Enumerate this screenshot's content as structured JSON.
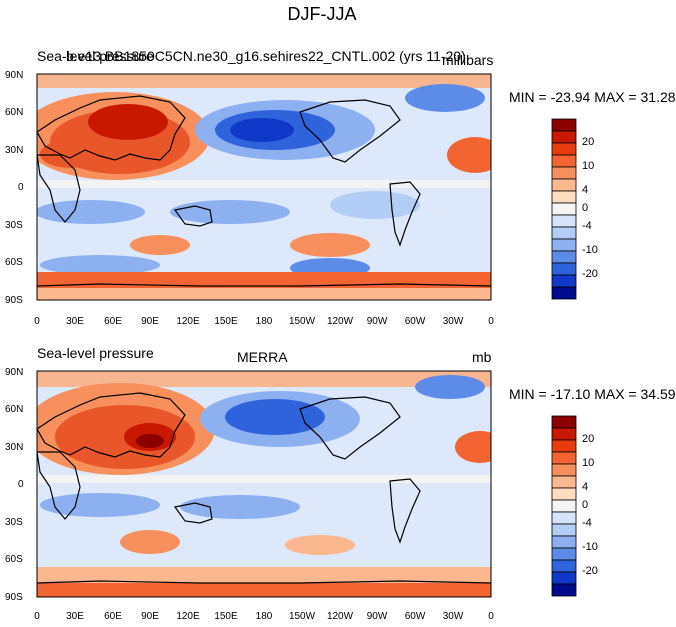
{
  "figure_title": "DJF-JJA",
  "panels": [
    {
      "left_title": "Sea-level pressure",
      "center_title": "b.e13.BB1850C5CN.ne30_g16.sehires22_CNTL.002 (yrs 11-20)",
      "right_title": "millibars",
      "min_max": "MIN = -23.94 MAX =  31.28"
    },
    {
      "left_title": "Sea-level pressure",
      "center_title": "MERRA",
      "right_title": "mb",
      "min_max": "MIN = -17.10 MAX =  34.59"
    }
  ],
  "lat_labels": [
    "90N",
    "60N",
    "30N",
    "0",
    "30S",
    "60S",
    "90S"
  ],
  "lon_labels": [
    "0",
    "30E",
    "60E",
    "90E",
    "120E",
    "150E",
    "180",
    "150W",
    "120W",
    "90W",
    "60W",
    "30W",
    "0"
  ],
  "colorbar": {
    "levels": [
      "20",
      "10",
      "4",
      "0",
      "-4",
      "-10",
      "-20"
    ],
    "colors": [
      "#8c0000",
      "#c81800",
      "#e83c10",
      "#f26432",
      "#f7905c",
      "#fbb88e",
      "#fddcc0",
      "#f4f4f4",
      "#d6e4fa",
      "#b2cdf6",
      "#8cb0f0",
      "#5c8ce8",
      "#2f63dc",
      "#1038c8",
      "#000a8c"
    ]
  },
  "colors": {
    "ocean": "#ddeafc",
    "continent_line": "#000000"
  }
}
